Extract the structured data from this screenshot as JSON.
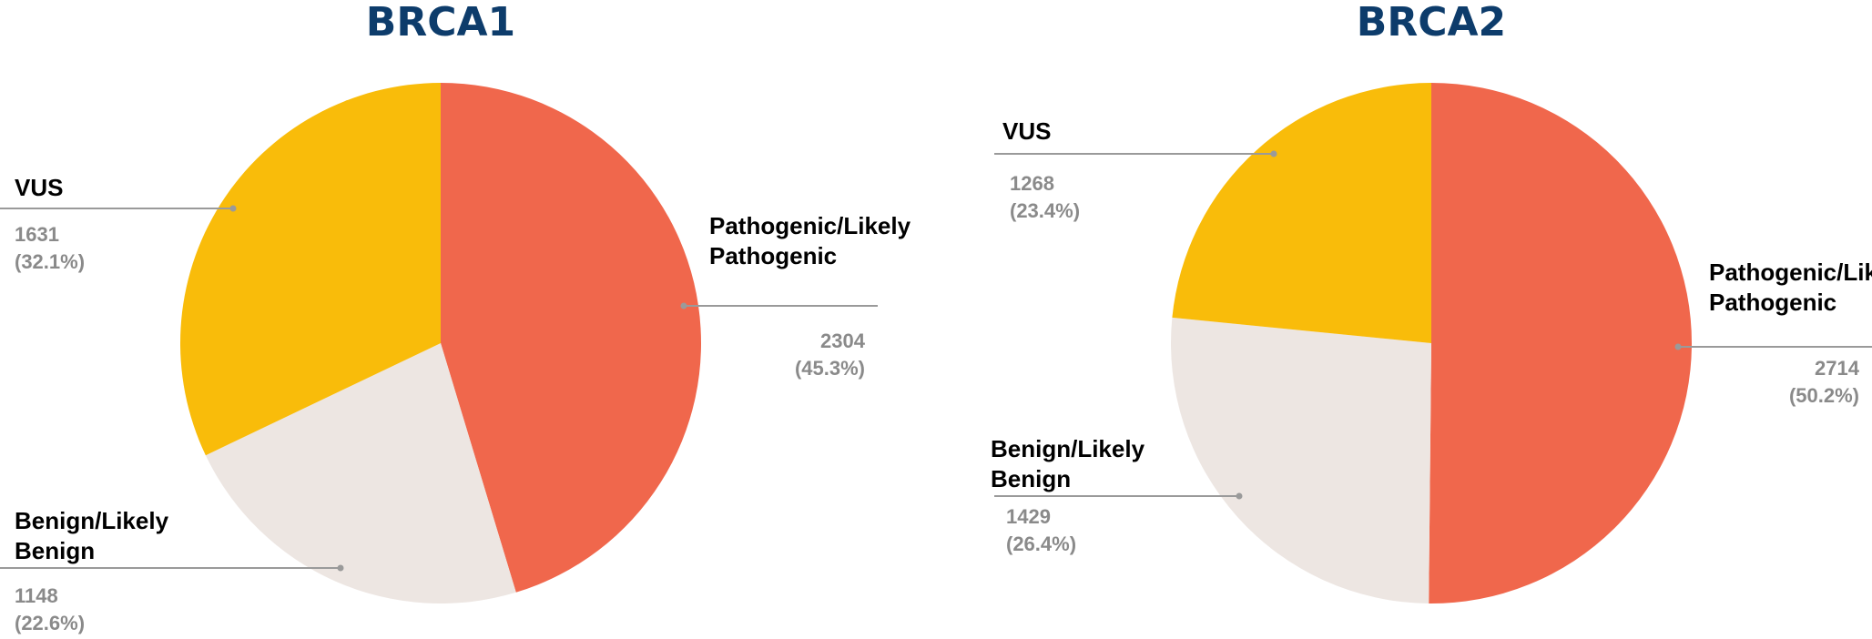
{
  "chart_data": [
    {
      "type": "pie",
      "title": "BRCA1",
      "categories": [
        "Pathogenic/Likely Pathogenic",
        "Benign/Likely Benign",
        "VUS"
      ],
      "values": [
        2304,
        1148,
        1631
      ],
      "value_labels": [
        "2304 (45.3%)",
        "1148 (22.6%)",
        "1631 (32.1%)"
      ],
      "colors": [
        "#f0674c",
        "#ede6e2",
        "#f9bc0a"
      ]
    },
    {
      "type": "pie",
      "title": "BRCA2",
      "categories": [
        "Pathogenic/Likely Pathogenic",
        "Benign/Likely Benign",
        "VUS"
      ],
      "values": [
        2714,
        1429,
        1268
      ],
      "value_labels": [
        "2714 (50.2%)",
        "1429 (26.4%)",
        "1268 (23.4%)"
      ],
      "colors": [
        "#f0674c",
        "#ede6e2",
        "#f9bc0a"
      ]
    }
  ]
}
